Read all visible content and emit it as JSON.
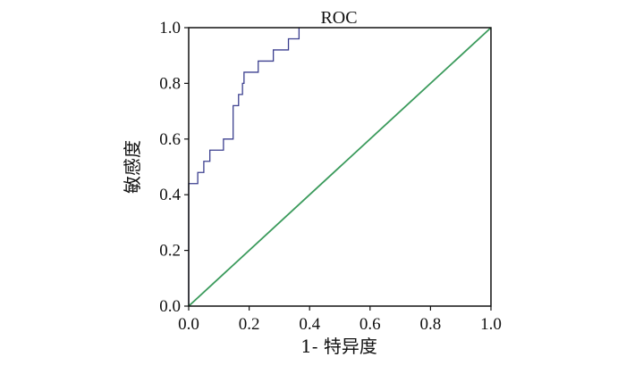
{
  "chart_data": {
    "type": "line",
    "title": "ROC",
    "xlabel": "1- 特异度",
    "ylabel": "敏感度",
    "xlim": [
      0.0,
      1.0
    ],
    "ylim": [
      0.0,
      1.0
    ],
    "grid": false,
    "x_ticks": [
      "0.0",
      "0.2",
      "0.4",
      "0.6",
      "0.8",
      "1.0"
    ],
    "y_ticks": [
      "0.0",
      "0.2",
      "0.4",
      "0.6",
      "0.8",
      "1.0"
    ],
    "series": [
      {
        "color": "#3b3f8f",
        "step": true,
        "x": [
          0.0,
          0.0,
          0.03,
          0.03,
          0.05,
          0.05,
          0.07,
          0.07,
          0.115,
          0.115,
          0.147,
          0.147,
          0.165,
          0.165,
          0.178,
          0.178,
          0.183,
          0.183,
          0.23,
          0.23,
          0.28,
          0.28,
          0.33,
          0.33,
          0.365,
          0.365
        ],
        "y": [
          0.0,
          0.44,
          0.44,
          0.48,
          0.48,
          0.52,
          0.52,
          0.56,
          0.56,
          0.6,
          0.6,
          0.72,
          0.72,
          0.76,
          0.76,
          0.8,
          0.8,
          0.84,
          0.84,
          0.88,
          0.88,
          0.92,
          0.92,
          0.96,
          0.96,
          1.0
        ]
      },
      {
        "color": "#3a9a5b",
        "x": [
          0.0,
          1.0
        ],
        "y": [
          0.0,
          1.0
        ]
      }
    ]
  }
}
